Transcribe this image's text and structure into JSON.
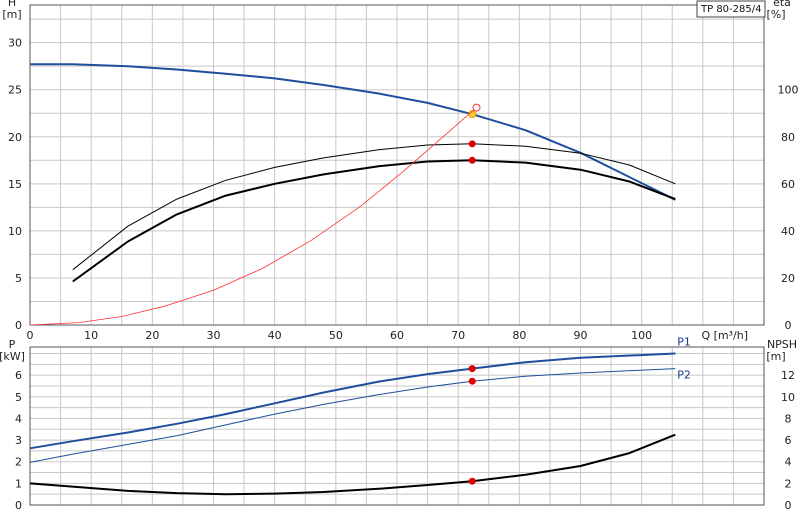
{
  "chart_data": [
    {
      "type": "line",
      "model": "TP 80-285/4",
      "ylabel_left": "H",
      "yunit_left": "[m]",
      "ylabel_right": "eta",
      "yunit_right": "[%]",
      "xlabel": "Q [m³/h]",
      "xlim": [
        0,
        120
      ],
      "ylim_left": [
        0,
        34
      ],
      "ylim_right": [
        0,
        136
      ],
      "xticks": [
        0,
        10,
        20,
        30,
        40,
        50,
        60,
        70,
        80,
        90,
        100
      ],
      "yticks_left": [
        0,
        5,
        10,
        15,
        20,
        25,
        30
      ],
      "yticks_right": [
        0,
        20,
        40,
        60,
        80,
        100
      ],
      "grid": true,
      "duty_point_q": 72.3,
      "series": [
        {
          "axis": "left",
          "color": "#1f4e9c",
          "x": [
            0,
            7,
            16,
            24,
            32,
            40,
            48,
            57,
            65,
            72.3,
            81,
            90,
            105.5
          ],
          "y": [
            27.7,
            27.7,
            27.5,
            27.15,
            26.7,
            26.2,
            25.5,
            24.6,
            23.6,
            22.4,
            20.7,
            18.3,
            13.3
          ],
          "points": [
            {
              "x": 72.3,
              "y": 22.4,
              "color": "#ffcc33"
            }
          ]
        },
        {
          "axis": "right",
          "color": "#000000",
          "width": 1,
          "x": [
            7,
            16,
            24,
            32,
            40,
            48,
            57,
            65,
            72.3,
            81,
            90,
            98,
            105.5
          ],
          "y": [
            23.5,
            42,
            53.5,
            61.5,
            67,
            71,
            74.5,
            76.5,
            77,
            76,
            73,
            68,
            60
          ],
          "points": [
            {
              "x": 72.3,
              "y": 77,
              "color": "#e00000"
            }
          ]
        },
        {
          "axis": "right",
          "color": "#000000",
          "width": 2,
          "x": [
            7,
            16,
            24,
            32,
            40,
            48,
            57,
            65,
            72.3,
            81,
            90,
            98,
            105.5
          ],
          "y": [
            18.5,
            35.5,
            47,
            55,
            60,
            64,
            67.5,
            69.5,
            70,
            69,
            66,
            61,
            53.5
          ],
          "points": [
            {
              "x": 72.3,
              "y": 70,
              "color": "#e00000"
            }
          ]
        },
        {
          "axis": "left",
          "color": "#ff3030",
          "width": 0.8,
          "x": [
            0,
            8,
            15,
            22,
            30,
            38,
            46,
            54,
            61,
            67,
            73
          ],
          "y": [
            0,
            0.25,
            0.9,
            2.0,
            3.7,
            6.0,
            9.0,
            12.6,
            16.3,
            19.7,
            23.1
          ],
          "points": [
            {
              "x": 73,
              "y": 23.1,
              "color": "#ffffff",
              "stroke": "#ff3030"
            }
          ]
        }
      ]
    },
    {
      "type": "line",
      "ylabel_left": "P",
      "yunit_left": "[kW]",
      "ylabel_right": "NPSH",
      "yunit_right": "[m]",
      "xlim": [
        0,
        120
      ],
      "ylim_left": [
        0,
        7.3
      ],
      "ylim_right": [
        0,
        14.6
      ],
      "yticks_left": [
        0,
        1,
        2,
        3,
        4,
        5,
        6
      ],
      "yticks_right": [
        0,
        2,
        4,
        6,
        8,
        10,
        12
      ],
      "grid": true,
      "series": [
        {
          "name": "P1",
          "axis": "left",
          "color": "#1f4e9c",
          "width": 2,
          "x": [
            0,
            7,
            16,
            24,
            32,
            40,
            48,
            57,
            65,
            72.3,
            81,
            90,
            105.5
          ],
          "y": [
            2.62,
            2.95,
            3.35,
            3.75,
            4.2,
            4.7,
            5.2,
            5.7,
            6.05,
            6.3,
            6.6,
            6.8,
            7.0
          ],
          "points": [
            {
              "x": 72.3,
              "y": 6.3,
              "color": "#e00000"
            }
          ]
        },
        {
          "name": "P2",
          "axis": "left",
          "color": "#1f4e9c",
          "width": 1,
          "x": [
            0,
            7,
            16,
            24,
            32,
            40,
            48,
            57,
            65,
            72.3,
            81,
            90,
            105.5
          ],
          "y": [
            1.97,
            2.35,
            2.8,
            3.2,
            3.7,
            4.2,
            4.65,
            5.1,
            5.45,
            5.72,
            5.95,
            6.1,
            6.3
          ],
          "points": [
            {
              "x": 72.3,
              "y": 5.72,
              "color": "#e00000"
            }
          ]
        },
        {
          "axis": "right",
          "color": "#000000",
          "width": 2,
          "x": [
            0,
            8,
            16,
            24,
            32,
            40,
            48,
            57,
            65,
            72.3,
            81,
            90,
            98,
            105.5
          ],
          "y": [
            2.0,
            1.65,
            1.3,
            1.1,
            1.0,
            1.05,
            1.2,
            1.5,
            1.85,
            2.2,
            2.8,
            3.6,
            4.8,
            6.5
          ],
          "points": [
            {
              "x": 72.3,
              "y": 2.2,
              "color": "#e00000"
            }
          ]
        }
      ]
    }
  ]
}
